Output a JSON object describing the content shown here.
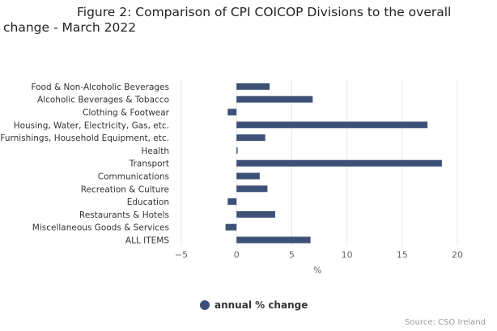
{
  "title_line1": "Figure 2: Comparison of CPI COICOP Divisions to the overall",
  "title_line2": "change - March 2022",
  "source": "Source: CSO Ireland",
  "legend": {
    "label": "annual % change"
  },
  "colors": {
    "bar": "#3d5077",
    "grid": "#e6e6e6",
    "axis_text": "#666666"
  },
  "chart_data": {
    "type": "bar",
    "orientation": "horizontal",
    "categories": [
      "Food & Non-Alcoholic Beverages",
      "Alcoholic Beverages & Tobacco",
      "Clothing & Footwear",
      "Housing, Water, Electricity, Gas, etc.",
      "Furnishings, Household Equipment, etc.",
      "Health",
      "Transport",
      "Communications",
      "Recreation & Culture",
      "Education",
      "Restaurants & Hotels",
      "Miscellaneous Goods & Services",
      "ALL ITEMS"
    ],
    "series": [
      {
        "name": "annual % change",
        "values": [
          3.0,
          6.9,
          -0.8,
          17.3,
          2.6,
          0.1,
          18.6,
          2.1,
          2.8,
          -0.8,
          3.5,
          -1.0,
          6.7
        ]
      }
    ],
    "xlabel": "%",
    "xlim": [
      -5,
      20
    ],
    "xticks": [
      -5,
      0,
      5,
      10,
      15,
      20
    ],
    "xtick_labels": [
      "−5",
      "0",
      "5",
      "10",
      "15",
      "20"
    ],
    "grid": true,
    "legend_position": "bottom-center"
  }
}
